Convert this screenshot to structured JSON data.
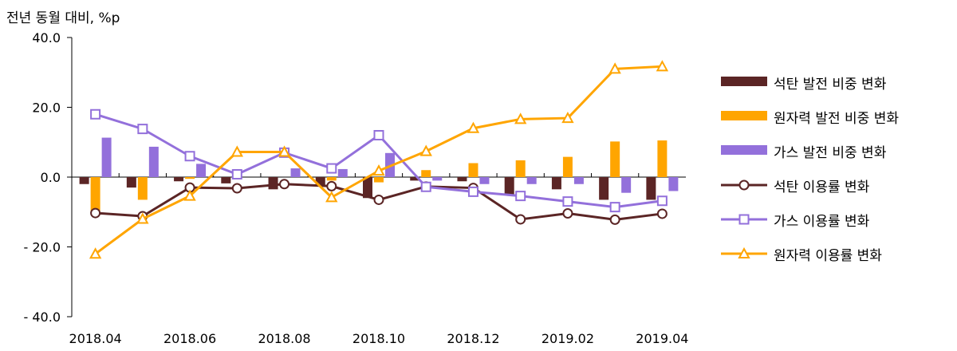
{
  "chart_data": {
    "type": "bar",
    "ylabel": "전년 동월 대비, %p",
    "ylim": [
      -40,
      40
    ],
    "yticks": [
      40,
      20,
      0,
      -20,
      -40
    ],
    "yticklabels": [
      "40.0",
      "20.0",
      "0.0",
      "- 20.0",
      "- 40.0"
    ],
    "categories": [
      "2018.04",
      "2018.05",
      "2018.06",
      "2018.07",
      "2018.08",
      "2018.09",
      "2018.10",
      "2018.11",
      "2018.12",
      "2019.01",
      "2019.02",
      "2019.03",
      "2019.04"
    ],
    "xticklabels": [
      "2018.04",
      "",
      "2018.06",
      "",
      "2018.08",
      "",
      "2018.10",
      "",
      "2018.12",
      "",
      "2019.02",
      "",
      "2019.04"
    ],
    "bar_series": [
      {
        "name": "석탄 발전 비중 변화",
        "color": "#5b2525",
        "values": [
          -2.0,
          -3.0,
          -1.2,
          -1.8,
          -3.5,
          -2.3,
          -6.0,
          -1.0,
          -1.2,
          -5.0,
          -3.5,
          -6.5,
          -6.5
        ]
      },
      {
        "name": "원자력 발전 비중 변화",
        "color": "#ffa500",
        "values": [
          -10.0,
          -6.5,
          -0.5,
          0.0,
          0.0,
          -1.0,
          -1.5,
          2.0,
          4.0,
          4.8,
          5.8,
          10.2,
          10.5
        ]
      },
      {
        "name": "가스 발전 비중 변화",
        "color": "#9370db",
        "values": [
          11.3,
          8.7,
          3.8,
          0.0,
          2.5,
          2.3,
          6.9,
          -1.0,
          -2.0,
          -2.0,
          -2.0,
          -4.5,
          -4.0
        ]
      }
    ],
    "line_series": [
      {
        "name": "석탄 이용률 변화",
        "color": "#5b2525",
        "marker": "circle",
        "values": [
          -10.3,
          -11.2,
          -3.0,
          -3.2,
          -2.0,
          -2.6,
          -6.5,
          -2.7,
          -3.1,
          -12.1,
          -10.4,
          -12.2,
          -10.5
        ]
      },
      {
        "name": "가스 이용률 변화",
        "color": "#9370db",
        "marker": "square",
        "values": [
          18.0,
          13.8,
          6.0,
          0.8,
          7.0,
          2.5,
          12.0,
          -2.8,
          -4.2,
          -5.4,
          -7.0,
          -8.6,
          -6.8
        ]
      },
      {
        "name": "원자력 이용률 변화",
        "color": "#ffa500",
        "marker": "triangle",
        "values": [
          -22.0,
          -12.0,
          -5.4,
          7.2,
          7.2,
          -5.8,
          1.8,
          7.4,
          14.0,
          16.6,
          16.9,
          31.0,
          31.7
        ]
      }
    ]
  },
  "legend": [
    {
      "label": "석탄 발전 비중 변화",
      "kind": "bar",
      "color": "#5b2525"
    },
    {
      "label": "원자력 발전 비중 변화",
      "kind": "bar",
      "color": "#ffa500"
    },
    {
      "label": "가스 발전 비중 변화",
      "kind": "bar",
      "color": "#9370db"
    },
    {
      "label": "석탄 이용률 변화",
      "kind": "line",
      "marker": "circle",
      "color": "#5b2525"
    },
    {
      "label": "가스 이용률 변화",
      "kind": "line",
      "marker": "square",
      "color": "#9370db"
    },
    {
      "label": "원자력 이용률 변화",
      "kind": "line",
      "marker": "triangle",
      "color": "#ffa500"
    }
  ]
}
